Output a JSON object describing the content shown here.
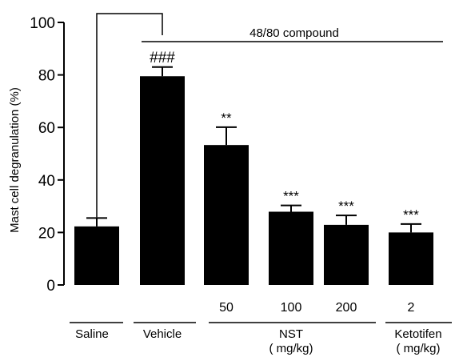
{
  "chart_data": {
    "type": "bar",
    "ylabel": "Mast cell degranulation (%)",
    "ylim": [
      0,
      100
    ],
    "yticks": [
      0,
      20,
      40,
      60,
      80,
      100
    ],
    "grid": false,
    "legend": "none",
    "bar_color": "#000000",
    "categories": [
      "Saline",
      "Vehicle",
      "50",
      "100",
      "200",
      "2"
    ],
    "values": [
      22.3,
      79.5,
      53.3,
      27.9,
      22.9,
      20.0
    ],
    "error_up": [
      3.2,
      3.5,
      6.8,
      2.4,
      3.6,
      3.2
    ],
    "significance": [
      "",
      "###",
      "**",
      "***",
      "***",
      "***"
    ],
    "group_labels": [
      {
        "label": "Saline",
        "unit": ""
      },
      {
        "label": "Vehicle",
        "unit": ""
      },
      {
        "label": "NST",
        "unit": "( mg/kg)"
      },
      {
        "label": "Ketotifen",
        "unit": "( mg/kg)"
      }
    ],
    "compound_label": "48/80 compound"
  }
}
